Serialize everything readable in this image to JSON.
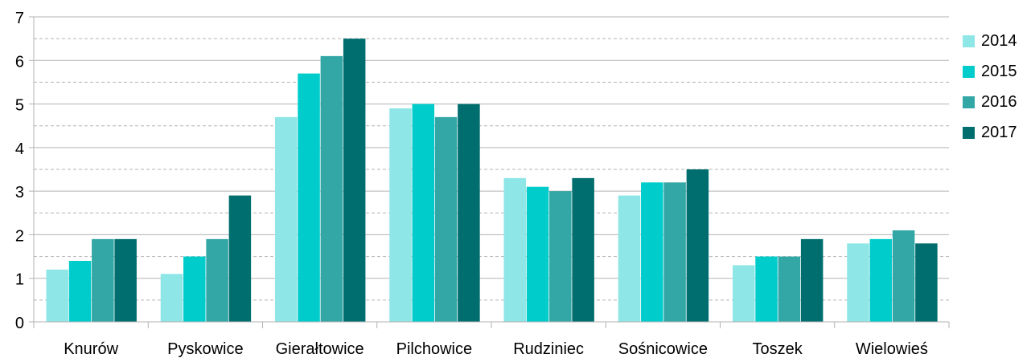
{
  "chart_data": {
    "type": "bar",
    "categories": [
      "Knurów",
      "Pyskowice",
      "Gierałtowice",
      "Pilchowice",
      "Rudziniec",
      "Sośnicowice",
      "Toszek",
      "Wielowieś"
    ],
    "series": [
      {
        "name": "2014",
        "color": "#8ee6e6",
        "values": [
          1.2,
          1.1,
          4.7,
          4.9,
          3.3,
          2.9,
          1.3,
          1.8
        ]
      },
      {
        "name": "2015",
        "color": "#00cccc",
        "values": [
          1.4,
          1.5,
          5.7,
          5.0,
          3.1,
          3.2,
          1.5,
          1.9
        ]
      },
      {
        "name": "2016",
        "color": "#33a6a6",
        "values": [
          1.9,
          1.9,
          6.1,
          4.7,
          3.0,
          3.2,
          1.5,
          2.1
        ]
      },
      {
        "name": "2017",
        "color": "#006e6e",
        "values": [
          1.9,
          2.9,
          6.5,
          5.0,
          3.3,
          3.5,
          1.9,
          1.8
        ]
      }
    ],
    "y_ticks": [
      "0",
      "1",
      "2",
      "3",
      "4",
      "5",
      "6",
      "7"
    ],
    "ylim": [
      0,
      7
    ],
    "grid": true,
    "legend_position": "right"
  }
}
